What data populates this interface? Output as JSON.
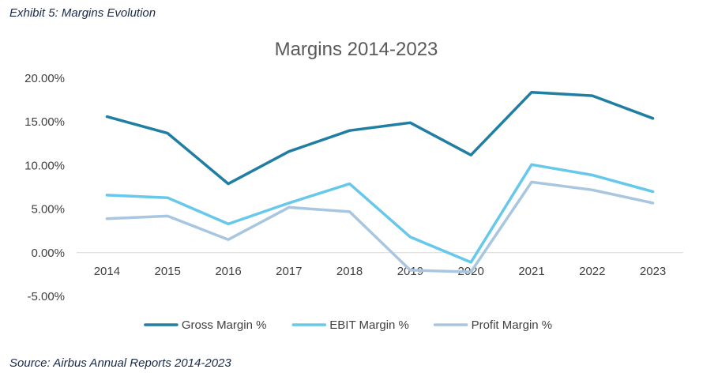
{
  "header": {
    "exhibit_title": "Exhibit 5: Margins Evolution"
  },
  "footer": {
    "source": "Source: Airbus Annual Reports 2014-2023"
  },
  "chart_data": {
    "type": "line",
    "title": "Margins 2014-2023",
    "xlabel": "",
    "ylabel": "",
    "ylim": [
      -5,
      20
    ],
    "y_ticks": [
      -5,
      0,
      5,
      10,
      15,
      20
    ],
    "y_tick_labels": [
      "-5.00%",
      "0.00%",
      "5.00%",
      "10.00%",
      "15.00%",
      "20.00%"
    ],
    "x": [
      "2014",
      "2015",
      "2016",
      "2017",
      "2018",
      "2019",
      "2020",
      "2021",
      "2022",
      "2023"
    ],
    "grid": false,
    "legend_position": "bottom",
    "series": [
      {
        "name": "Gross Margin %",
        "color": "#1f7ea1",
        "values": [
          15.6,
          13.7,
          7.9,
          11.6,
          14.0,
          14.9,
          11.2,
          18.4,
          18.0,
          15.4
        ]
      },
      {
        "name": "EBIT Margin %",
        "color": "#66c8ea",
        "values": [
          6.6,
          6.3,
          3.3,
          5.7,
          7.9,
          1.8,
          -1.1,
          10.1,
          8.9,
          7.0
        ]
      },
      {
        "name": "Profit Margin %",
        "color": "#a8c6df",
        "values": [
          3.9,
          4.2,
          1.5,
          5.2,
          4.7,
          -2.0,
          -2.2,
          8.1,
          7.2,
          5.7
        ]
      }
    ]
  }
}
